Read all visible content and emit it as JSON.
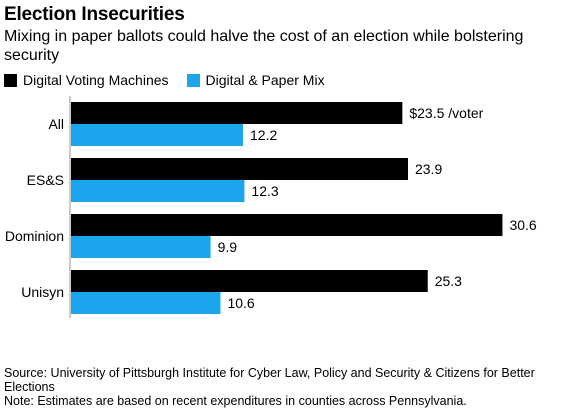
{
  "chart_data": {
    "type": "bar",
    "orientation": "horizontal",
    "title": "Election Insecurities",
    "subtitle": "Mixing in paper ballots could halve the cost of an election while bolstering security",
    "categories": [
      "All",
      "ES&S",
      "Dominion",
      "Unisyn"
    ],
    "series": [
      {
        "name": "Digital Voting Machines",
        "color": "#000000",
        "values": [
          23.5,
          23.9,
          30.6,
          25.3
        ]
      },
      {
        "name": "Digital & Paper Mix",
        "color": "#1aa5ec",
        "values": [
          12.2,
          12.3,
          9.9,
          10.6
        ]
      }
    ],
    "data_labels": [
      [
        "$23.5 /voter",
        "23.9",
        "30.6",
        "25.3"
      ],
      [
        "12.2",
        "12.3",
        "9.9",
        "10.6"
      ]
    ],
    "xlim": [
      0,
      34
    ],
    "grid": false,
    "legend": "top-left"
  },
  "footer": {
    "source": "Source: University of Pittsburgh Institute for Cyber Law, Policy and Security & Citizens for Better Elections",
    "note": "Note: Estimates are based on recent expenditures in counties across Pennsylvania."
  }
}
